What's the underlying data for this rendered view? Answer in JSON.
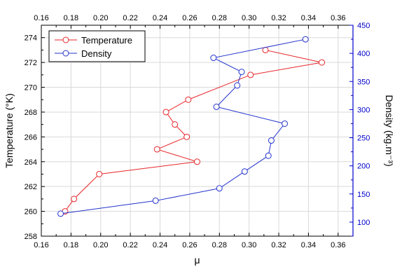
{
  "chart_data": {
    "type": "line",
    "x_axis": {
      "label": "μ",
      "range": [
        0.16,
        0.37
      ],
      "ticks": [
        "0.16",
        "0.18",
        "0.20",
        "0.22",
        "0.24",
        "0.26",
        "0.28",
        "0.30",
        "0.32",
        "0.34",
        "0.36"
      ],
      "tick_values": [
        0.16,
        0.18,
        0.2,
        0.22,
        0.24,
        0.26,
        0.28,
        0.3,
        0.32,
        0.34,
        0.36
      ],
      "mirrored_top": true
    },
    "y_left": {
      "label": "Temperature (°K)",
      "range": [
        258,
        275
      ],
      "ticks": [
        "258",
        "260",
        "262",
        "264",
        "266",
        "268",
        "270",
        "272",
        "274"
      ],
      "tick_values": [
        258,
        260,
        262,
        264,
        266,
        268,
        270,
        272,
        274
      ],
      "color": "#000000"
    },
    "y_right": {
      "label": "Density (kg.m⁻³)",
      "range": [
        75,
        450
      ],
      "ticks": [
        "100",
        "150",
        "200",
        "250",
        "300",
        "350",
        "400",
        "450"
      ],
      "tick_values": [
        100,
        150,
        200,
        250,
        300,
        350,
        400,
        450
      ],
      "color": "#0000cc"
    },
    "grid": true,
    "legend_position": "top-left",
    "series": [
      {
        "name": "Temperature",
        "axis": "left",
        "color": "#e8262b",
        "marker": "open-circle",
        "x": [
          0.176,
          0.182,
          0.199,
          0.265,
          0.238,
          0.258,
          0.25,
          0.244,
          0.259,
          0.301,
          0.349,
          0.311
        ],
        "y": [
          260,
          261,
          263,
          264,
          265,
          266,
          267,
          268,
          269,
          271,
          272,
          273
        ]
      },
      {
        "name": "Density",
        "axis": "right",
        "color": "#2233cc",
        "marker": "open-circle",
        "x": [
          0.173,
          0.237,
          0.28,
          0.297,
          0.313,
          0.315,
          0.324,
          0.278,
          0.292,
          0.295,
          0.276,
          0.338
        ],
        "y": [
          115,
          138,
          160,
          190,
          218,
          245,
          275,
          305,
          343,
          367,
          392,
          425
        ]
      }
    ]
  }
}
